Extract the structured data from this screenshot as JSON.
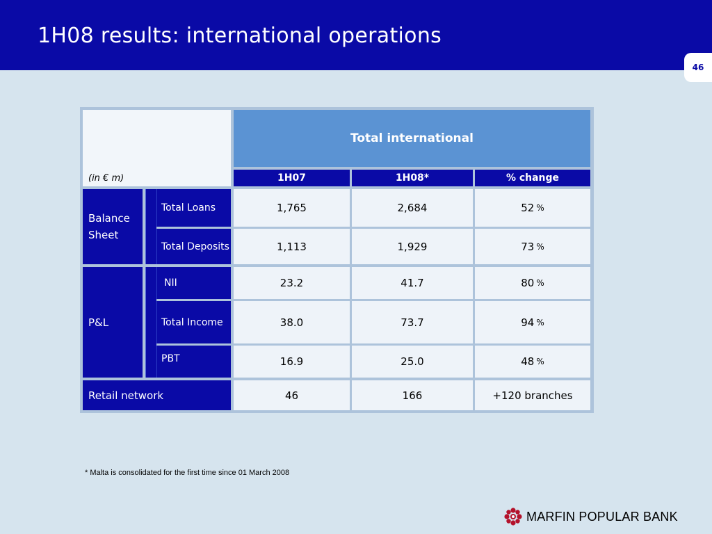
{
  "slide": {
    "title": "1H08 results: international operations",
    "page_number": "46",
    "footnote": "* Malta is consolidated for the first time since 01 March  2008",
    "brand": "MARFIN POPULAR BANK",
    "brand_color": "#b4122b",
    "header_color": "#0a0aa6"
  },
  "table": {
    "unit_label": "(in € m)",
    "group_header": "Total international",
    "columns": [
      "1H07",
      "1H08*",
      "% change"
    ],
    "sections": {
      "balance_sheet": "Balance Sheet",
      "pl": "P&L",
      "retail": "Retail network"
    },
    "rows": [
      {
        "metric": "Total Loans",
        "h107": "1,765",
        "h108": "2,684",
        "change": "52",
        "unit": "%"
      },
      {
        "metric": "Total Deposits",
        "h107": "1,113",
        "h108": "1,929",
        "change": "73",
        "unit": "%"
      },
      {
        "metric": "NII",
        "h107": "23.2",
        "h108": "41.7",
        "change": "80",
        "unit": "%"
      },
      {
        "metric": "Total Income",
        "h107": "38.0",
        "h108": "73.7",
        "change": "94",
        "unit": "%"
      },
      {
        "metric": "PBT",
        "h107": "16.9",
        "h108": "25.0",
        "change": "48",
        "unit": "%"
      }
    ],
    "retail": {
      "h107": "46",
      "h108": "166",
      "change": "+120 branches"
    }
  }
}
